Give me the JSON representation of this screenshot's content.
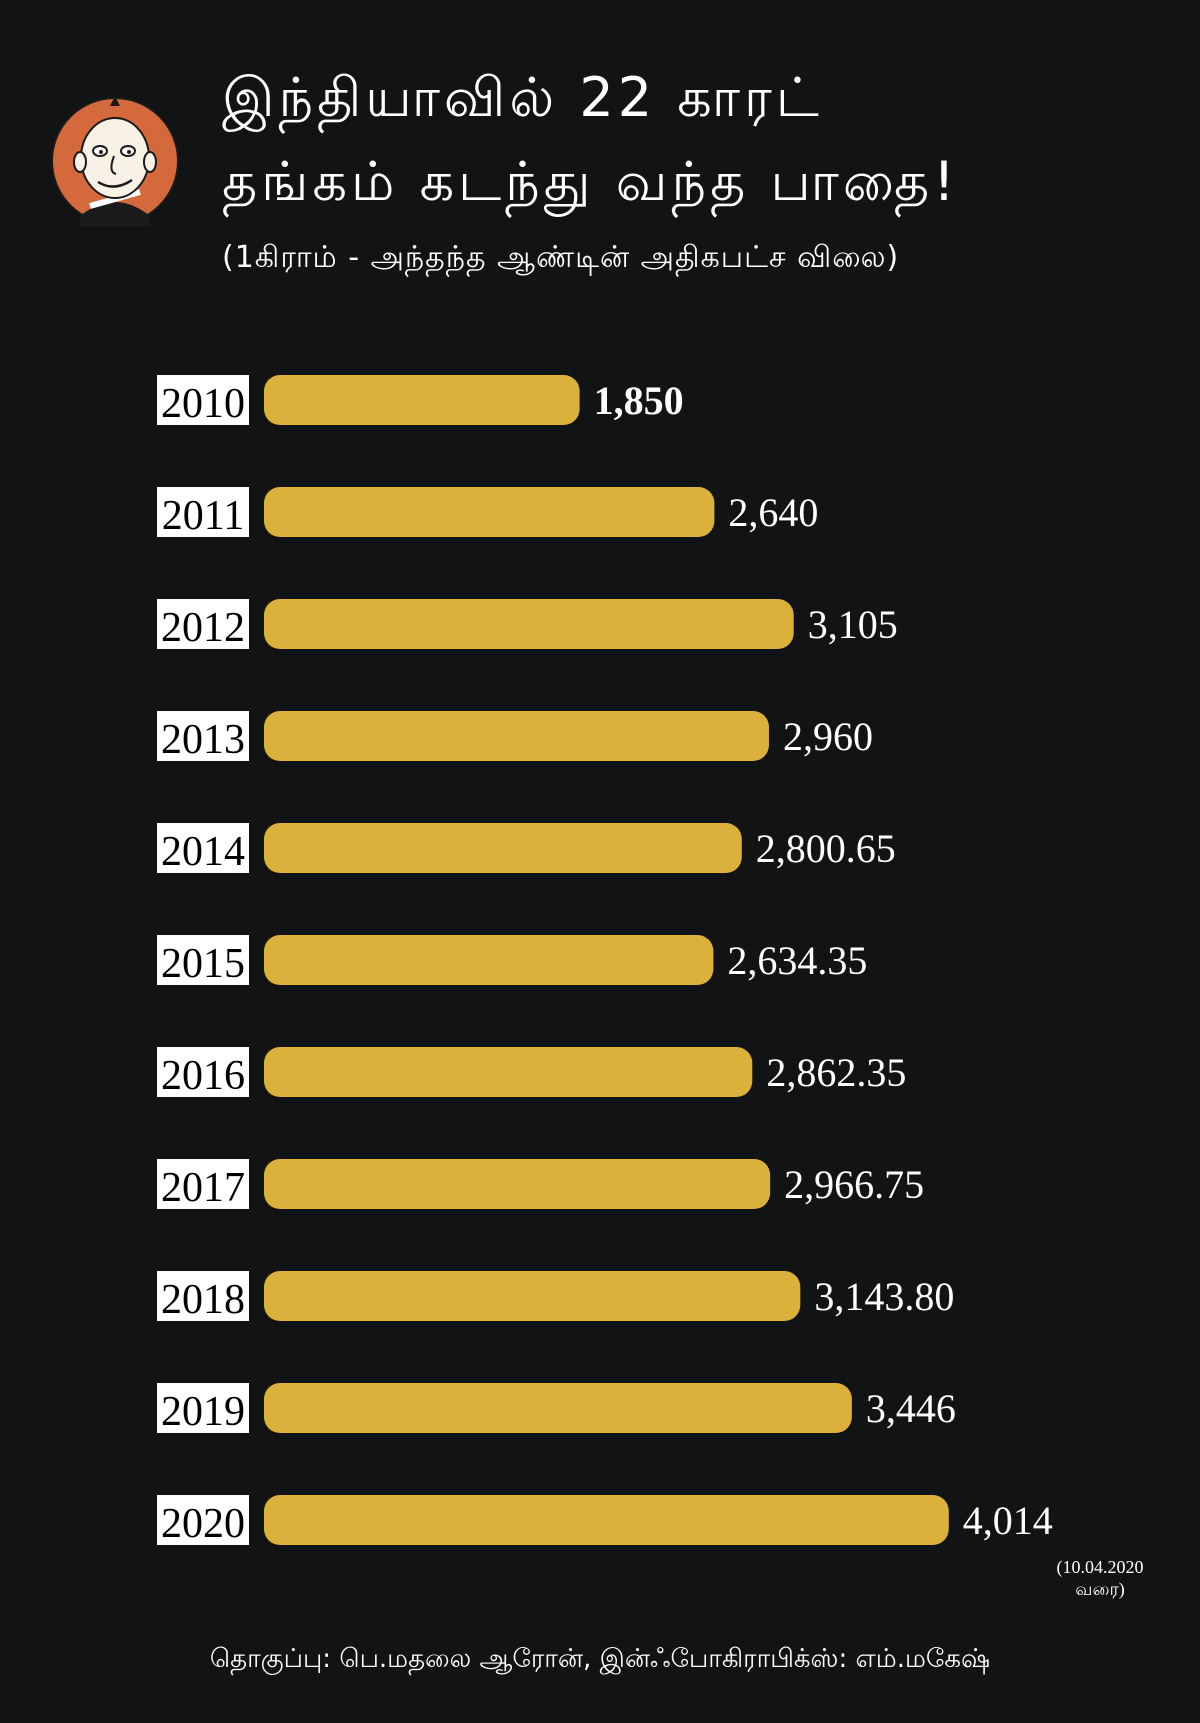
{
  "header": {
    "title_line1": "இந்தியாவில் 22 காரட்",
    "title_line2": "தங்கம் கடந்து வந்த பாதை!",
    "subtitle": "(1கிராம் - அந்தந்த ஆண்டின் அதிகபட்ச விலை)"
  },
  "chart_data": {
    "type": "bar",
    "orientation": "horizontal",
    "categories": [
      "2010",
      "2011",
      "2012",
      "2013",
      "2014",
      "2015",
      "2016",
      "2017",
      "2018",
      "2019",
      "2020"
    ],
    "values": [
      1850,
      2640,
      3105,
      2960,
      2800.65,
      2634.35,
      2862.35,
      2966.75,
      3143.8,
      3446,
      4014
    ],
    "value_labels": [
      "1,850",
      "2,640",
      "3,105",
      "2,960",
      "2,800.65",
      "2,634.35",
      "2,862.35",
      "2,966.75",
      "3,143.80",
      "3,446",
      "4,014"
    ],
    "title": "இந்தியாவில் 22 காரட் தங்கம் கடந்து வந்த பாதை!",
    "subtitle": "(1கிராம் - அந்தந்த ஆண்டின் அதிகபட்ச விலை)",
    "xlabel": "",
    "ylabel": "",
    "grid": false,
    "legend": "none",
    "bar_color": "#dbb13b",
    "background": "#121314",
    "annotations": [
      "(10.04.2020",
      "வரை)"
    ]
  },
  "note": {
    "line1": "(10.04.2020",
    "line2": "வரை)"
  },
  "credits": "தொகுப்பு: பெ.மதலை ஆரோன், இன்ஃபோகிராபிக்ஸ்: எம்.மகேஷ்",
  "logo": {
    "icon": "cartoon-mascot-icon",
    "background": "#d46a3c"
  }
}
